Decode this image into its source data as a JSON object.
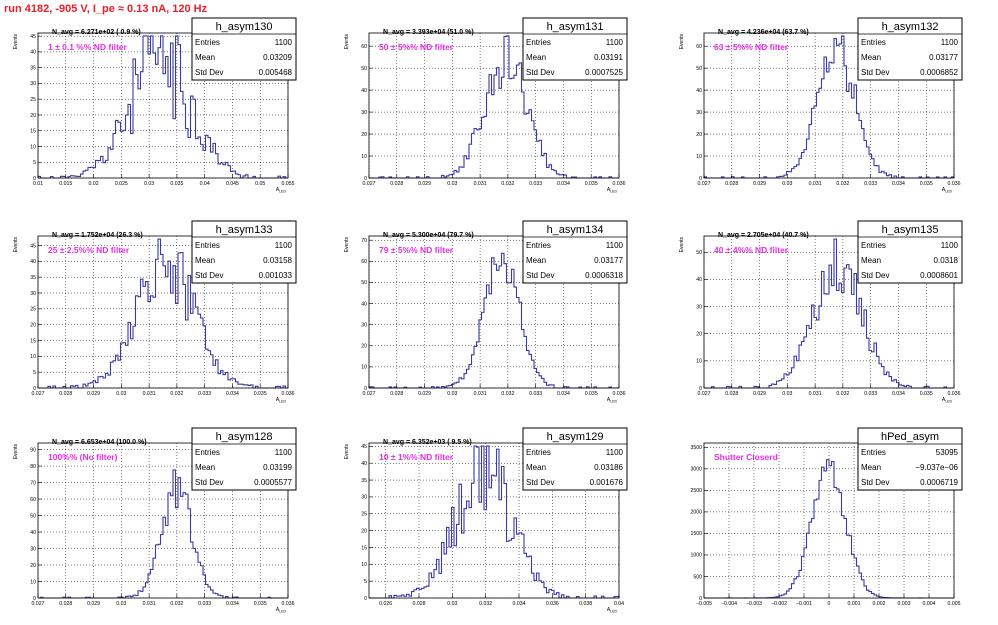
{
  "header": {
    "title": "run 4182,  -905 V, I_pe ≈ 0.13 nA, 120 Hz"
  },
  "colors": {
    "hist": "#3a3aa6",
    "filter": "#e62ee6",
    "title": "#e8202a"
  },
  "chart_data": [
    {
      "type": "histogram",
      "name": "h_asym130",
      "stats": {
        "entries": "1100",
        "mean": "0.03209",
        "stddev": "0.005468"
      },
      "navg": "N_avg = 6.271e+02 ( 0.9 %)",
      "filter": "1 ± 0.1 %% ND filter",
      "xlim": [
        0.01,
        0.055
      ],
      "xticks": [
        "0.01",
        "0.015",
        "0.02",
        "0.025",
        "0.03",
        "0.035",
        "0.04",
        "0.045",
        "0.05",
        "0.055"
      ],
      "ylim": [
        0,
        46
      ],
      "yticks": [
        "0",
        "5",
        "10",
        "15",
        "20",
        "25",
        "30",
        "35",
        "40",
        "45"
      ],
      "xlabel": "A_LED",
      "ylabel": "Events",
      "mean": 0.03209,
      "sigma": 0.005468,
      "peak": 38,
      "jitter": 0.6
    },
    {
      "type": "histogram",
      "name": "h_asym131",
      "stats": {
        "entries": "1100",
        "mean": "0.03191",
        "stddev": "0.0007525"
      },
      "navg": "N_avg = 3.393e+04 (51.0 %)",
      "filter": "50 ± 5%% ND filter",
      "xlim": [
        0.027,
        0.036
      ],
      "xticks": [
        "0.027",
        "0.028",
        "0.029",
        "0.03",
        "0.031",
        "0.032",
        "0.033",
        "0.034",
        "0.035",
        "0.036"
      ],
      "ylim": [
        0,
        66
      ],
      "yticks": [
        "0",
        "10",
        "20",
        "30",
        "40",
        "50",
        "60"
      ],
      "xlabel": "A_LED",
      "ylabel": "Events",
      "mean": 0.03191,
      "sigma": 0.0007525,
      "peak": 55,
      "jitter": 0.3
    },
    {
      "type": "histogram",
      "name": "h_asym132",
      "stats": {
        "entries": "1100",
        "mean": "0.03177",
        "stddev": "0.0006852"
      },
      "navg": "N_avg = 4.236e+04 (63.7 %)",
      "filter": "63 ± 5%% ND filter",
      "xlim": [
        0.027,
        0.036
      ],
      "xticks": [
        "0.027",
        "0.028",
        "0.029",
        "0.03",
        "0.031",
        "0.032",
        "0.033",
        "0.034",
        "0.035",
        "0.036"
      ],
      "ylim": [
        0,
        66
      ],
      "yticks": [
        "0",
        "10",
        "20",
        "30",
        "40",
        "50",
        "60"
      ],
      "xlabel": "A_LED",
      "ylabel": "Events",
      "mean": 0.03177,
      "sigma": 0.0006852,
      "peak": 57,
      "jitter": 0.3
    },
    {
      "type": "histogram",
      "name": "h_asym133",
      "stats": {
        "entries": "1100",
        "mean": "0.03158",
        "stddev": "0.001033"
      },
      "navg": "N_avg = 1.752e+04 (26.3 %)",
      "filter": "25 ± 2.5%% ND filter",
      "xlim": [
        0.027,
        0.036
      ],
      "xticks": [
        "0.027",
        "0.028",
        "0.029",
        "0.03",
        "0.031",
        "0.032",
        "0.033",
        "0.034",
        "0.035",
        "0.036"
      ],
      "ylim": [
        0,
        48
      ],
      "yticks": [
        "0",
        "5",
        "10",
        "15",
        "20",
        "25",
        "30",
        "35",
        "40",
        "45"
      ],
      "xlabel": "A_LED",
      "ylabel": "Events",
      "mean": 0.03158,
      "sigma": 0.001033,
      "peak": 40,
      "jitter": 0.35
    },
    {
      "type": "histogram",
      "name": "h_asym134",
      "stats": {
        "entries": "1100",
        "mean": "0.03177",
        "stddev": "0.0006318"
      },
      "navg": "N_avg = 5.300e+04 (79.7 %)",
      "filter": "79 ± 5%% ND filter",
      "xlim": [
        0.027,
        0.036
      ],
      "xticks": [
        "0.027",
        "0.028",
        "0.029",
        "0.03",
        "0.031",
        "0.032",
        "0.033",
        "0.034",
        "0.035",
        "0.036"
      ],
      "ylim": [
        0,
        72
      ],
      "yticks": [
        "0",
        "10",
        "20",
        "30",
        "40",
        "50",
        "60",
        "70"
      ],
      "xlabel": "A_LED",
      "ylabel": "Events",
      "mean": 0.03177,
      "sigma": 0.0006318,
      "peak": 63,
      "jitter": 0.2
    },
    {
      "type": "histogram",
      "name": "h_asym135",
      "stats": {
        "entries": "1100",
        "mean": "0.0318",
        "stddev": "0.0008601"
      },
      "navg": "N_avg = 2.705e+04 (40.7 %)",
      "filter": "40 ± 4%% ND filter",
      "xlim": [
        0.027,
        0.036
      ],
      "xticks": [
        "0.027",
        "0.028",
        "0.029",
        "0.03",
        "0.031",
        "0.032",
        "0.033",
        "0.034",
        "0.035",
        "0.036"
      ],
      "ylim": [
        0,
        56
      ],
      "yticks": [
        "0",
        "10",
        "20",
        "30",
        "40",
        "50"
      ],
      "xlabel": "A_LED",
      "ylabel": "Events",
      "mean": 0.0318,
      "sigma": 0.0008601,
      "peak": 47,
      "jitter": 0.3
    },
    {
      "type": "histogram",
      "name": "h_asym128",
      "stats": {
        "entries": "1100",
        "mean": "0.03199",
        "stddev": "0.0005577"
      },
      "navg": "N_avg = 6.653e+04 (100.0 %)",
      "filter": "100%% (No filter)",
      "xlim": [
        0.027,
        0.036
      ],
      "xticks": [
        "0.027",
        "0.028",
        "0.029",
        "0.03",
        "0.031",
        "0.032",
        "0.033",
        "0.034",
        "0.035",
        "0.036"
      ],
      "ylim": [
        0,
        94
      ],
      "yticks": [
        "0",
        "10",
        "20",
        "30",
        "40",
        "50",
        "60",
        "70",
        "80",
        "90"
      ],
      "xlabel": "A_LED",
      "ylabel": "Events",
      "mean": 0.03199,
      "sigma": 0.0005577,
      "peak": 66,
      "jitter": 0.25
    },
    {
      "type": "histogram",
      "name": "h_asym129",
      "stats": {
        "entries": "1100",
        "mean": "0.03186",
        "stddev": "0.001676"
      },
      "navg": "N_avg = 6.352e+03 ( 9.5 %)",
      "filter": "10 ± 1%% ND filter",
      "xlim": [
        0.025,
        0.04
      ],
      "xticks": [
        "0.026",
        "0.028",
        "0.03",
        "0.032",
        "0.034",
        "0.036",
        "0.038",
        "0.04"
      ],
      "ylim": [
        0,
        46
      ],
      "yticks": [
        "0",
        "5",
        "10",
        "15",
        "20",
        "25",
        "30",
        "35",
        "40",
        "45"
      ],
      "xlabel": "A_LED",
      "ylabel": "Events",
      "mean": 0.03186,
      "sigma": 0.001676,
      "peak": 37,
      "jitter": 0.5
    },
    {
      "type": "histogram",
      "name": "hPed_asym",
      "stats": {
        "entries": "53095",
        "mean": "−9.037e−06",
        "stddev": "0.0006719"
      },
      "navg": "",
      "filter": "Shutter Closerd",
      "xlim": [
        -0.005,
        0.005
      ],
      "xticks": [
        "−0.005",
        "−0.004",
        "−0.003",
        "−0.002",
        "−0.001",
        "0",
        "0.001",
        "0.002",
        "0.003",
        "0.004",
        "0.005"
      ],
      "ylim": [
        0,
        3600
      ],
      "yticks": [
        "0",
        "500",
        "1000",
        "1500",
        "2000",
        "2500",
        "3000",
        "3500"
      ],
      "xlabel": "",
      "ylabel": "",
      "mean": -9e-06,
      "sigma": 0.0006719,
      "peak": 3000,
      "jitter": 0.15
    }
  ]
}
